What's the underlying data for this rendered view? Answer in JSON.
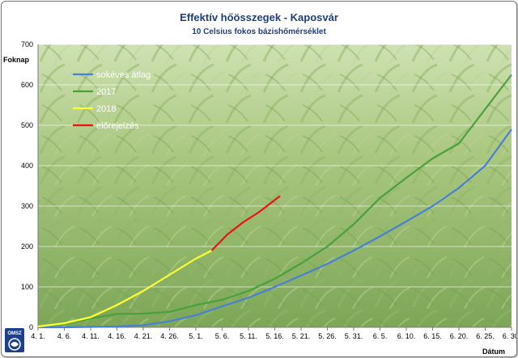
{
  "chart_data": {
    "type": "line",
    "title": "Effektív hőösszegek - Kaposvár",
    "subtitle": "10 Celsius fokos bázishőmérséklet",
    "ylabel": "Foknap",
    "xlabel": "Dátum",
    "ylim": [
      0,
      700
    ],
    "yticks": [
      0,
      100,
      200,
      300,
      400,
      500,
      600,
      700
    ],
    "xlim": [
      "4. 1.",
      "6. 30."
    ],
    "xtick_labels": [
      "4. 1.",
      "4. 6.",
      "4. 11.",
      "4. 16.",
      "4. 21.",
      "4. 26.",
      "5. 1.",
      "5. 6.",
      "5. 11.",
      "5. 16.",
      "5. 21.",
      "5. 26.",
      "5. 31.",
      "6. 5.",
      "6. 10.",
      "6. 15.",
      "6. 20.",
      "6. 25.",
      "6. 30."
    ],
    "grid": true,
    "legend_position": "top-left",
    "series": [
      {
        "name": "sokéves átlag",
        "color": "#4a7fd4",
        "points": [
          [
            "4. 1.",
            0
          ],
          [
            "4. 6.",
            0
          ],
          [
            "4. 11.",
            1
          ],
          [
            "4. 16.",
            2
          ],
          [
            "4. 21.",
            5
          ],
          [
            "4. 26.",
            15
          ],
          [
            "5. 1.",
            30
          ],
          [
            "5. 6.",
            52
          ],
          [
            "5. 11.",
            73
          ],
          [
            "5. 16.",
            100
          ],
          [
            "5. 21.",
            128
          ],
          [
            "5. 26.",
            157
          ],
          [
            "5. 31.",
            190
          ],
          [
            "6. 5.",
            225
          ],
          [
            "6. 10.",
            262
          ],
          [
            "6. 15.",
            300
          ],
          [
            "6. 20.",
            345
          ],
          [
            "6. 25.",
            400
          ],
          [
            "6. 30.",
            490
          ]
        ]
      },
      {
        "name": "2017",
        "color": "#4aa03a",
        "points": [
          [
            "4. 1.",
            2
          ],
          [
            "4. 6.",
            8
          ],
          [
            "4. 11.",
            22
          ],
          [
            "4. 16.",
            33
          ],
          [
            "4. 21.",
            34
          ],
          [
            "4. 26.",
            38
          ],
          [
            "5. 1.",
            55
          ],
          [
            "5. 6.",
            68
          ],
          [
            "5. 11.",
            90
          ],
          [
            "5. 16.",
            120
          ],
          [
            "5. 21.",
            158
          ],
          [
            "5. 26.",
            200
          ],
          [
            "5. 31.",
            255
          ],
          [
            "6. 5.",
            320
          ],
          [
            "6. 10.",
            370
          ],
          [
            "6. 15.",
            418
          ],
          [
            "6. 20.",
            455
          ],
          [
            "6. 25.",
            540
          ],
          [
            "6. 30.",
            625
          ]
        ]
      },
      {
        "name": "2018",
        "color": "#ffff33",
        "points": [
          [
            "4. 1.",
            2
          ],
          [
            "4. 6.",
            10
          ],
          [
            "4. 11.",
            25
          ],
          [
            "4. 16.",
            55
          ],
          [
            "4. 21.",
            90
          ],
          [
            "4. 26.",
            130
          ],
          [
            "5. 1.",
            170
          ],
          [
            "5. 4.",
            190
          ]
        ]
      },
      {
        "name": "előrejelzés",
        "color": "#ee1111",
        "points": [
          [
            "5. 4.",
            190
          ],
          [
            "5. 7.",
            230
          ],
          [
            "5. 10.",
            260
          ],
          [
            "5. 13.",
            285
          ],
          [
            "5. 17.",
            325
          ]
        ]
      }
    ]
  },
  "logo": {
    "text": "OMSZ"
  }
}
